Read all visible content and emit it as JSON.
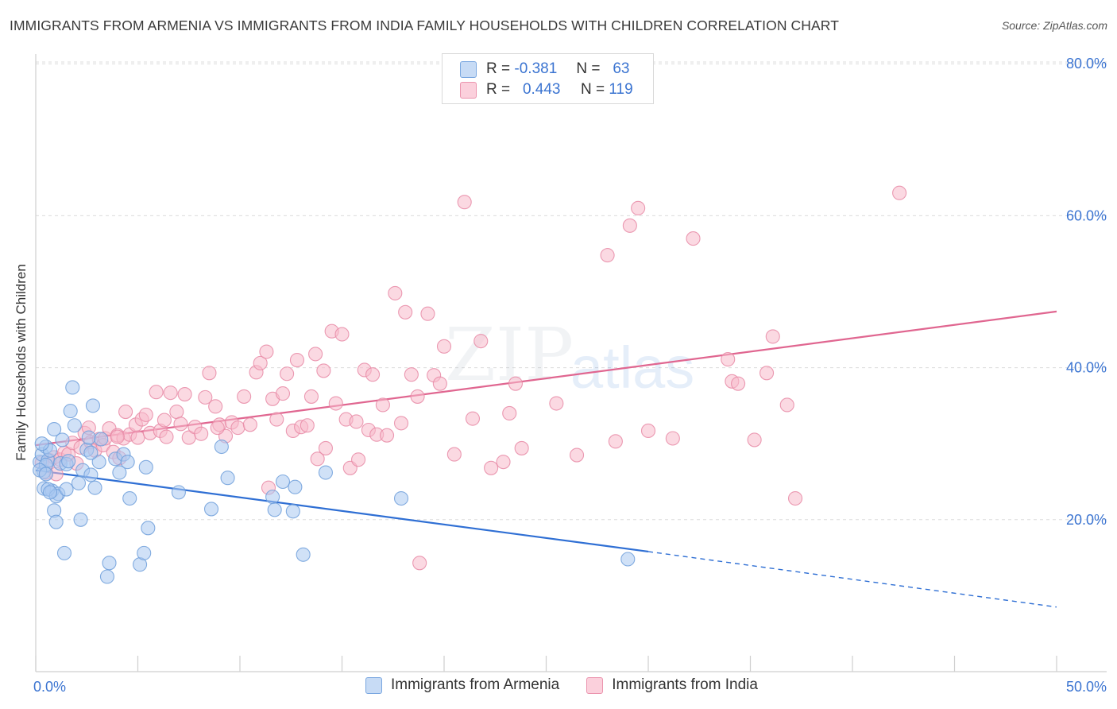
{
  "header": {
    "title": "IMMIGRANTS FROM ARMENIA VS IMMIGRANTS FROM INDIA FAMILY HOUSEHOLDS WITH CHILDREN CORRELATION CHART",
    "source": "Source: ZipAtlas.com"
  },
  "watermark": {
    "zip": "ZIP",
    "atlas": "atlas"
  },
  "legend": {
    "armenia": {
      "r_label": "R =",
      "r_value": "-0.381",
      "n_label": "N =",
      "n_value": "63",
      "color": "#a9c8f0"
    },
    "india": {
      "r_label": "R =",
      "r_value": "0.443",
      "n_label": "N =",
      "n_value": "119",
      "color": "#f7b9cb"
    }
  },
  "bottom_legend": {
    "armenia": "Immigrants from Armenia",
    "india": "Immigrants from India"
  },
  "colors": {
    "armenia_fill": "#a9c8f0",
    "armenia_stroke": "#6f9fdb",
    "armenia_line": "#2f6fd4",
    "india_fill": "#f7b9cb",
    "india_stroke": "#e88aa6",
    "india_line": "#e06690",
    "axis_label": "#3b74d1",
    "grid": "#dcdcdc"
  },
  "chart_data": {
    "type": "scatter",
    "title": "IMMIGRANTS FROM ARMENIA VS IMMIGRANTS FROM INDIA FAMILY HOUSEHOLDS WITH CHILDREN CORRELATION CHART",
    "xlabel": "",
    "ylabel": "Family Households with Children",
    "xlim": [
      0,
      50
    ],
    "ylim": [
      0,
      85
    ],
    "x_tick_labels": [
      "0.0%",
      "50.0%"
    ],
    "y_ticks": [
      20,
      40,
      60,
      80
    ],
    "y_tick_labels": [
      "20.0%",
      "40.0%",
      "60.0%",
      "80.0%"
    ],
    "grid": true,
    "legend_placement": "top-center",
    "series": [
      {
        "name": "Immigrants from Armenia",
        "points": [
          [
            0.2,
            27.6
          ],
          [
            0.3,
            28.6
          ],
          [
            0.4,
            26.3
          ],
          [
            0.5,
            29.6
          ],
          [
            0.6,
            27.8
          ],
          [
            0.7,
            29.1
          ],
          [
            0.4,
            24.1
          ],
          [
            0.8,
            23.8
          ],
          [
            0.9,
            21.2
          ],
          [
            1.0,
            19.7
          ],
          [
            0.9,
            31.9
          ],
          [
            1.1,
            23.4
          ],
          [
            1.2,
            27.4
          ],
          [
            1.3,
            30.5
          ],
          [
            1.4,
            15.6
          ],
          [
            1.5,
            27.3
          ],
          [
            1.7,
            34.3
          ],
          [
            1.8,
            37.4
          ],
          [
            1.9,
            32.4
          ],
          [
            2.1,
            24.8
          ],
          [
            2.2,
            20.0
          ],
          [
            2.3,
            26.5
          ],
          [
            2.5,
            29.2
          ],
          [
            2.6,
            30.8
          ],
          [
            2.7,
            25.9
          ],
          [
            2.8,
            35.0
          ],
          [
            2.9,
            24.2
          ],
          [
            3.1,
            27.6
          ],
          [
            3.2,
            30.6
          ],
          [
            3.5,
            12.5
          ],
          [
            3.6,
            14.3
          ],
          [
            3.9,
            28.0
          ],
          [
            4.1,
            26.2
          ],
          [
            4.3,
            28.6
          ],
          [
            4.5,
            27.6
          ],
          [
            4.6,
            22.8
          ],
          [
            5.1,
            14.1
          ],
          [
            5.3,
            15.6
          ],
          [
            5.5,
            18.9
          ],
          [
            5.4,
            26.9
          ],
          [
            7.0,
            23.6
          ],
          [
            8.6,
            21.4
          ],
          [
            9.1,
            29.6
          ],
          [
            9.4,
            25.5
          ],
          [
            11.6,
            23.0
          ],
          [
            11.7,
            21.3
          ],
          [
            12.1,
            25.0
          ],
          [
            12.6,
            21.1
          ],
          [
            12.7,
            24.3
          ],
          [
            13.1,
            15.4
          ],
          [
            14.2,
            26.2
          ],
          [
            17.9,
            22.8
          ],
          [
            29.0,
            14.8
          ],
          [
            0.6,
            24.0
          ],
          [
            1.0,
            23.1
          ],
          [
            0.3,
            30.0
          ],
          [
            0.5,
            27.2
          ],
          [
            0.7,
            23.6
          ],
          [
            0.2,
            26.5
          ],
          [
            1.5,
            24.0
          ],
          [
            1.6,
            27.7
          ],
          [
            0.5,
            26.0
          ],
          [
            2.7,
            28.8
          ]
        ]
      },
      {
        "name": "Immigrants from India",
        "points": [
          [
            0.3,
            27.5
          ],
          [
            0.5,
            26.2
          ],
          [
            0.7,
            27.8
          ],
          [
            0.9,
            28.2
          ],
          [
            1.0,
            26.0
          ],
          [
            1.2,
            27.9
          ],
          [
            1.4,
            28.8
          ],
          [
            1.6,
            28.6
          ],
          [
            1.8,
            30.1
          ],
          [
            2.0,
            27.4
          ],
          [
            2.2,
            29.5
          ],
          [
            2.4,
            31.4
          ],
          [
            2.6,
            32.1
          ],
          [
            2.7,
            30.2
          ],
          [
            2.9,
            29.1
          ],
          [
            3.1,
            30.6
          ],
          [
            3.3,
            29.8
          ],
          [
            3.4,
            30.7
          ],
          [
            3.6,
            32.0
          ],
          [
            3.8,
            28.9
          ],
          [
            4.0,
            31.1
          ],
          [
            4.1,
            28.1
          ],
          [
            4.3,
            30.7
          ],
          [
            4.4,
            34.2
          ],
          [
            4.6,
            31.2
          ],
          [
            4.9,
            32.5
          ],
          [
            5.0,
            30.8
          ],
          [
            5.2,
            33.2
          ],
          [
            5.4,
            33.8
          ],
          [
            5.6,
            31.4
          ],
          [
            5.9,
            36.8
          ],
          [
            6.1,
            31.7
          ],
          [
            6.3,
            33.1
          ],
          [
            6.6,
            36.7
          ],
          [
            6.9,
            34.2
          ],
          [
            7.1,
            32.6
          ],
          [
            7.3,
            36.5
          ],
          [
            7.5,
            30.8
          ],
          [
            7.8,
            32.2
          ],
          [
            8.1,
            31.3
          ],
          [
            8.3,
            36.1
          ],
          [
            8.5,
            39.3
          ],
          [
            8.8,
            34.9
          ],
          [
            9.0,
            32.5
          ],
          [
            9.3,
            31.0
          ],
          [
            9.6,
            32.8
          ],
          [
            9.9,
            32.1
          ],
          [
            10.2,
            36.2
          ],
          [
            10.5,
            32.5
          ],
          [
            10.8,
            39.4
          ],
          [
            11.0,
            40.6
          ],
          [
            11.3,
            42.1
          ],
          [
            11.6,
            35.9
          ],
          [
            11.8,
            33.2
          ],
          [
            12.1,
            36.6
          ],
          [
            12.3,
            39.2
          ],
          [
            12.6,
            31.7
          ],
          [
            12.8,
            41.0
          ],
          [
            13.0,
            32.2
          ],
          [
            13.3,
            32.4
          ],
          [
            13.5,
            36.2
          ],
          [
            13.7,
            41.8
          ],
          [
            13.8,
            28.0
          ],
          [
            14.1,
            39.6
          ],
          [
            14.2,
            29.4
          ],
          [
            14.5,
            44.8
          ],
          [
            14.7,
            35.3
          ],
          [
            15.0,
            44.4
          ],
          [
            15.2,
            33.2
          ],
          [
            15.4,
            26.8
          ],
          [
            15.7,
            32.9
          ],
          [
            15.8,
            27.9
          ],
          [
            16.1,
            39.7
          ],
          [
            16.3,
            31.8
          ],
          [
            16.5,
            39.1
          ],
          [
            16.7,
            31.2
          ],
          [
            17.0,
            35.1
          ],
          [
            17.2,
            31.1
          ],
          [
            17.6,
            49.8
          ],
          [
            17.9,
            32.7
          ],
          [
            18.1,
            47.3
          ],
          [
            18.4,
            39.1
          ],
          [
            18.7,
            36.2
          ],
          [
            19.2,
            47.1
          ],
          [
            19.5,
            39.0
          ],
          [
            19.8,
            37.9
          ],
          [
            20.0,
            42.8
          ],
          [
            20.5,
            28.6
          ],
          [
            21.0,
            61.8
          ],
          [
            21.4,
            33.3
          ],
          [
            21.8,
            43.5
          ],
          [
            22.3,
            26.8
          ],
          [
            22.9,
            27.6
          ],
          [
            23.2,
            34.0
          ],
          [
            23.5,
            37.9
          ],
          [
            23.8,
            29.4
          ],
          [
            25.5,
            35.3
          ],
          [
            26.5,
            28.5
          ],
          [
            28.0,
            54.8
          ],
          [
            28.4,
            30.3
          ],
          [
            29.1,
            58.7
          ],
          [
            29.5,
            61.0
          ],
          [
            30.0,
            31.7
          ],
          [
            31.2,
            30.7
          ],
          [
            32.2,
            57.0
          ],
          [
            33.9,
            41.1
          ],
          [
            34.1,
            38.2
          ],
          [
            34.4,
            37.9
          ],
          [
            35.2,
            30.5
          ],
          [
            35.8,
            39.3
          ],
          [
            36.1,
            44.1
          ],
          [
            36.8,
            35.1
          ],
          [
            37.2,
            22.8
          ],
          [
            42.3,
            63.0
          ],
          [
            11.4,
            24.2
          ],
          [
            18.8,
            14.3
          ],
          [
            4.0,
            30.9
          ],
          [
            6.4,
            30.9
          ],
          [
            8.9,
            32.1
          ]
        ]
      }
    ],
    "trend_lines": [
      {
        "name": "Immigrants from Armenia",
        "solid": [
          [
            0,
            26.5
          ],
          [
            30,
            15.8
          ]
        ],
        "dashed": [
          [
            30,
            15.8
          ],
          [
            50,
            8.5
          ]
        ]
      },
      {
        "name": "Immigrants from India",
        "solid": [
          [
            0,
            29.8
          ],
          [
            50,
            47.4
          ]
        ]
      }
    ]
  }
}
